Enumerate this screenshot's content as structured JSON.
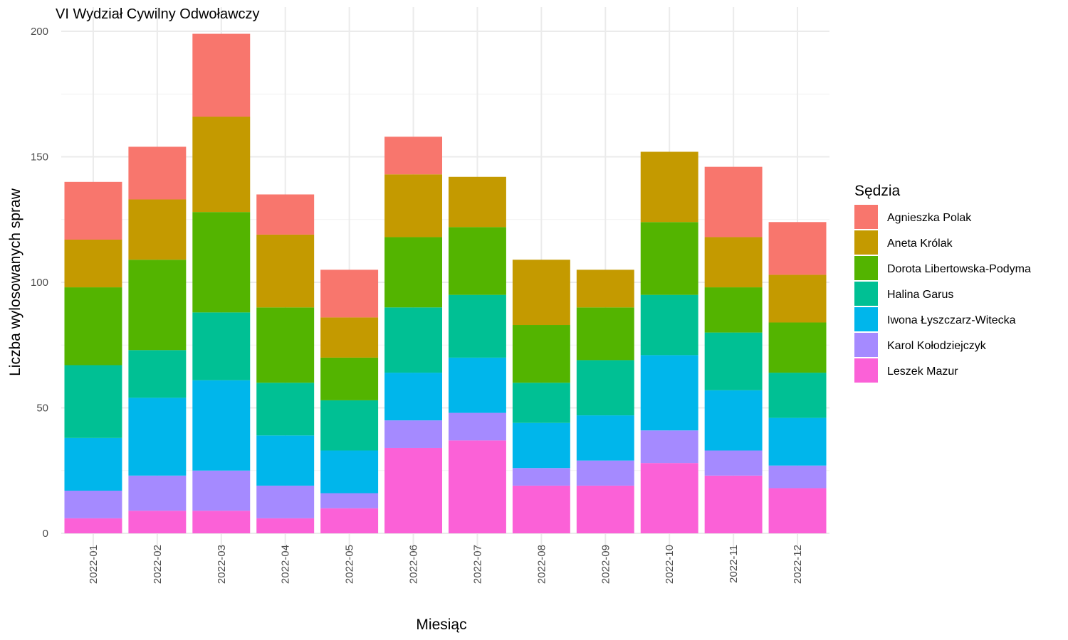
{
  "chart_data": {
    "type": "bar",
    "stacked": true,
    "title": "VI Wydział Cywilny Odwoławczy",
    "xlabel": "Miesiąc",
    "ylabel": "Liczba wylosowanych spraw",
    "ylim": [
      0,
      210
    ],
    "yticks": [
      0,
      50,
      100,
      150,
      200
    ],
    "grid": true,
    "legend_title": "Sędzia",
    "legend_position": "right",
    "categories": [
      "2022-01",
      "2022-02",
      "2022-03",
      "2022-04",
      "2022-05",
      "2022-06",
      "2022-07",
      "2022-08",
      "2022-09",
      "2022-10",
      "2022-11",
      "2022-12"
    ],
    "series": [
      {
        "name": "Agnieszka Polak",
        "color": "#F8766D",
        "values": [
          23,
          21,
          33,
          16,
          19,
          15,
          0,
          0,
          0,
          0,
          28,
          21
        ]
      },
      {
        "name": "Aneta Królak",
        "color": "#C49A00",
        "values": [
          19,
          24,
          38,
          29,
          16,
          25,
          20,
          26,
          15,
          28,
          20,
          19
        ]
      },
      {
        "name": "Dorota Libertowska-Podyma",
        "color": "#53B400",
        "values": [
          31,
          36,
          40,
          30,
          17,
          28,
          27,
          23,
          21,
          29,
          18,
          20
        ]
      },
      {
        "name": "Halina Garus",
        "color": "#00C094",
        "values": [
          29,
          19,
          27,
          21,
          20,
          26,
          25,
          16,
          22,
          24,
          23,
          18
        ]
      },
      {
        "name": "Iwona Łyszczarz-Witecka",
        "color": "#00B6EB",
        "values": [
          21,
          31,
          36,
          20,
          17,
          19,
          22,
          18,
          18,
          30,
          24,
          19
        ]
      },
      {
        "name": "Karol Kołodziejczyk",
        "color": "#A58AFF",
        "values": [
          11,
          14,
          16,
          13,
          6,
          11,
          11,
          7,
          10,
          13,
          10,
          9
        ]
      },
      {
        "name": "Leszek Mazur",
        "color": "#FB61D7",
        "values": [
          6,
          9,
          9,
          6,
          10,
          34,
          37,
          19,
          19,
          28,
          23,
          18
        ]
      }
    ]
  }
}
